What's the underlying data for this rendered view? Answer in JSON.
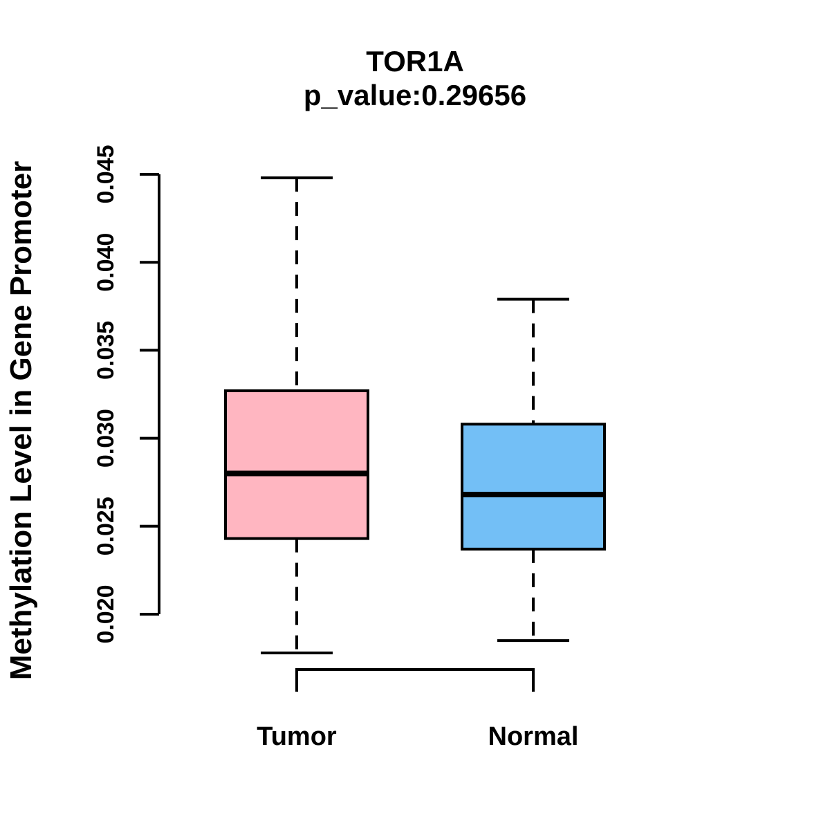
{
  "figure": {
    "background": "#ffffff"
  },
  "chart_data": {
    "type": "boxplot",
    "title": "TOR1A",
    "subtitle": "p_value:0.29656",
    "ylabel": "Methylation Level in Gene Promoter",
    "xlabel": "",
    "categories": [
      "Tumor",
      "Normal"
    ],
    "series": [
      {
        "name": "Tumor",
        "fill_color": "#FFB6C1",
        "lower_whisker": 0.0178,
        "q1": 0.0243,
        "median": 0.028,
        "q3": 0.0327,
        "upper_whisker": 0.0448
      },
      {
        "name": "Normal",
        "fill_color": "#73BFF6",
        "lower_whisker": 0.0185,
        "q1": 0.0237,
        "median": 0.0268,
        "q3": 0.0308,
        "upper_whisker": 0.0379
      }
    ],
    "y_axis": {
      "range": [
        0.02,
        0.045
      ],
      "ticks": [
        0.02,
        0.025,
        0.03,
        0.035,
        0.04,
        0.045
      ],
      "tick_labels": [
        "0.020",
        "0.025",
        "0.030",
        "0.035",
        "0.040",
        "0.045"
      ]
    },
    "grid": false,
    "legend": false,
    "outliers": [],
    "box_border_color": "#000000",
    "median_color": "#000000",
    "whisker_style": "dashed"
  }
}
